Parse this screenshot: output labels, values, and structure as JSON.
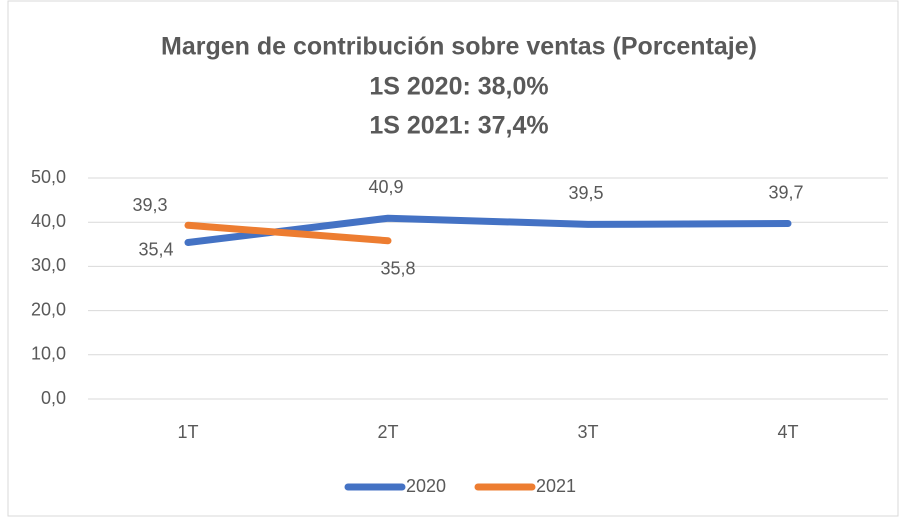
{
  "chart_data": {
    "type": "line",
    "title": "Margen de contribución sobre ventas (Porcentaje)",
    "subtitle": [
      "1S 2020: 38,0%",
      "1S 2021: 37,4%"
    ],
    "categories": [
      "1T",
      "2T",
      "3T",
      "4T"
    ],
    "series": [
      {
        "name": "2020",
        "color": "#4472c4",
        "values": [
          35.4,
          40.9,
          39.5,
          39.7
        ],
        "value_labels": [
          "35,4",
          "40,9",
          "39,5",
          "39,7"
        ]
      },
      {
        "name": "2021",
        "color": "#ed7d31",
        "values": [
          39.3,
          35.8,
          null,
          null
        ],
        "value_labels": [
          "39,3",
          "35,8",
          null,
          null
        ]
      }
    ],
    "ylim": [
      0,
      50
    ],
    "yticks": [
      {
        "value": 0,
        "label": "0,0"
      },
      {
        "value": 10,
        "label": "10,0"
      },
      {
        "value": 20,
        "label": "20,0"
      },
      {
        "value": 30,
        "label": "30,0"
      },
      {
        "value": 40,
        "label": "40,0"
      },
      {
        "value": 50,
        "label": "50,0"
      }
    ],
    "grid": true,
    "legend": "bottom"
  }
}
